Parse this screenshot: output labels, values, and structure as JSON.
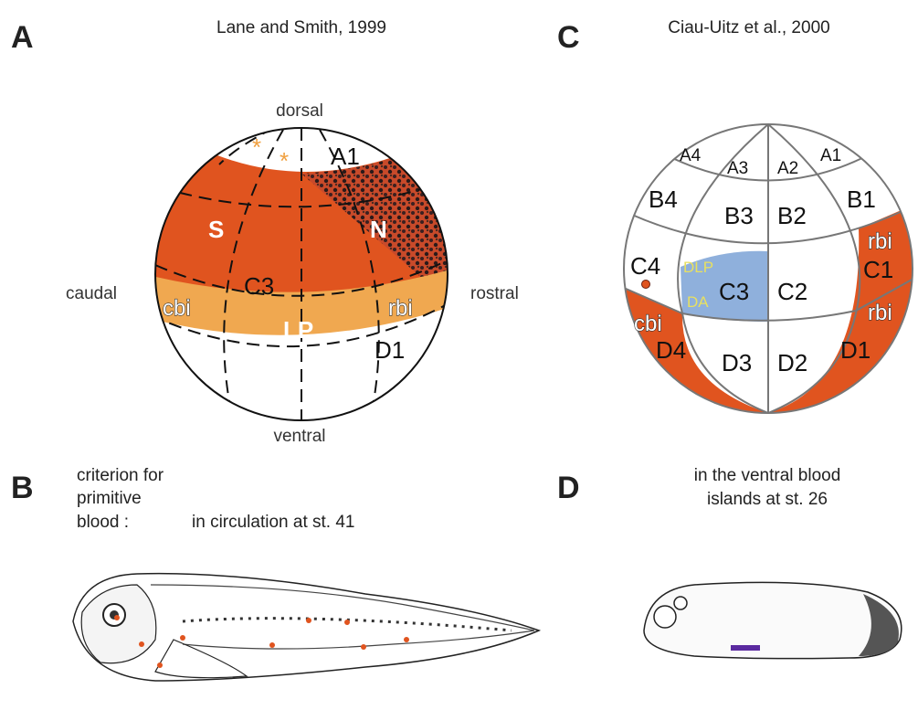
{
  "colors": {
    "orange": "#e0541f",
    "light_orange": "#f0a850",
    "blue": "#8fb0dc",
    "yellow_label": "#e8e060",
    "asterisk": "#f0a040",
    "purple": "#5b2aa0"
  },
  "panel_a": {
    "letter": "A",
    "citation": "Lane and Smith, 1999",
    "directions": {
      "dorsal": "dorsal",
      "ventral": "ventral",
      "caudal": "caudal",
      "rostral": "rostral"
    },
    "labels": {
      "a1": "A1",
      "s": "S",
      "n": "N",
      "c3": "C3",
      "cbi": "cbi",
      "rbi": "rbi",
      "lp": "LP",
      "d1": "D1",
      "asterisk": "*"
    }
  },
  "panel_b": {
    "letter": "B",
    "criterion_lines": [
      "criterion for",
      "primitive",
      "blood :"
    ],
    "criterion_text": "in circulation at st. 41"
  },
  "panel_c": {
    "letter": "C",
    "citation": "Ciau-Uitz et al., 2000",
    "labels": {
      "a4": "A4",
      "a3": "A3",
      "a2": "A2",
      "a1": "A1",
      "b4": "B4",
      "b3": "B3",
      "b2": "B2",
      "b1": "B1",
      "c4": "C4",
      "c3": "C3",
      "c2": "C2",
      "c1": "C1",
      "d4": "D4",
      "d3": "D3",
      "d2": "D2",
      "d1": "D1",
      "dlp": "DLP",
      "da": "DA",
      "cbi": "cbi",
      "rbi_c1": "rbi",
      "rbi_d1": "rbi"
    }
  },
  "panel_d": {
    "letter": "D",
    "caption_lines": [
      "in the ventral blood",
      "islands at st. 26"
    ]
  }
}
